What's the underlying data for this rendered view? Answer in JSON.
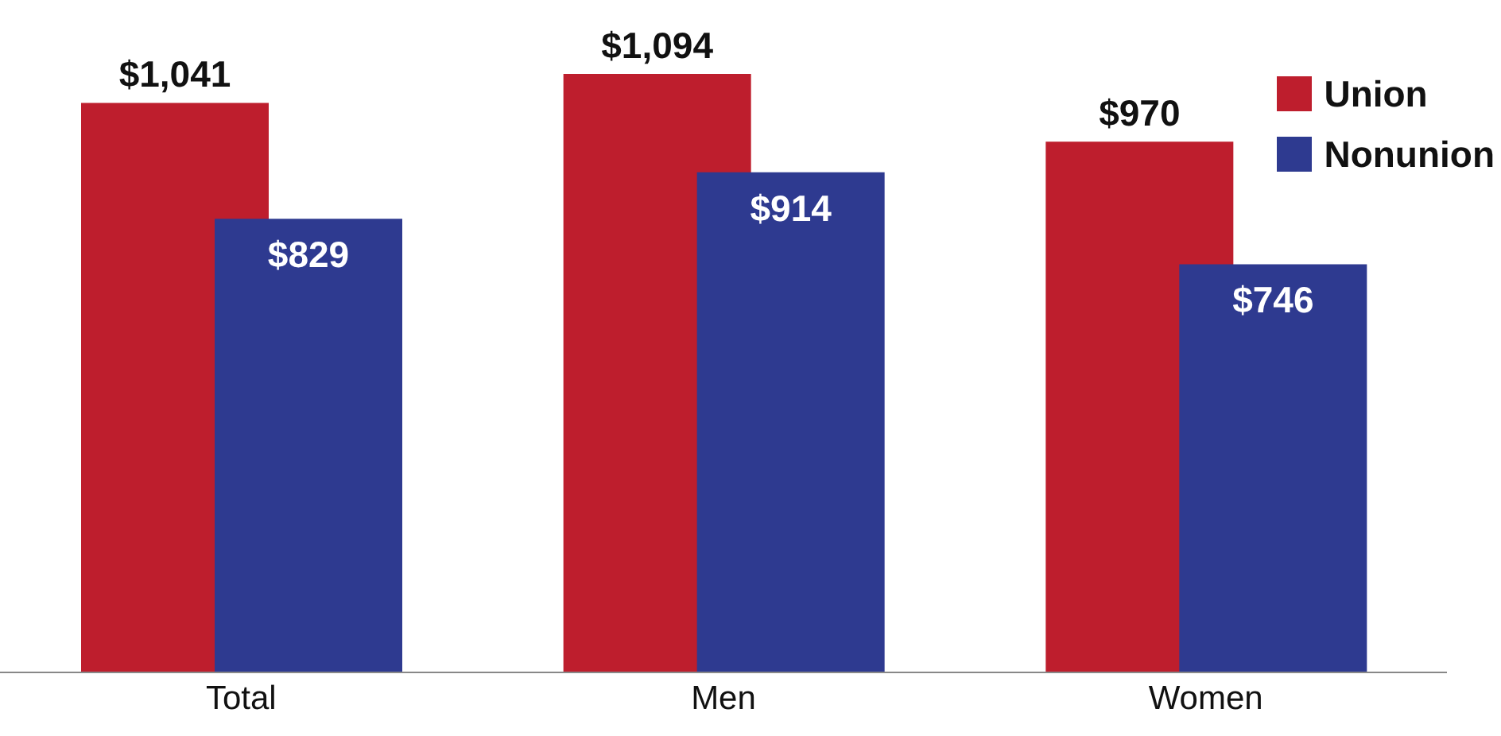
{
  "chart_data": {
    "type": "bar",
    "categories": [
      "Total",
      "Men",
      "Women"
    ],
    "series": [
      {
        "name": "Union",
        "color": "#be1e2d",
        "values": [
          1041,
          1094,
          970
        ],
        "value_labels": [
          "$1,041",
          "$1,094",
          "$970"
        ]
      },
      {
        "name": "Nonunion",
        "color": "#2e3a90",
        "values": [
          829,
          914,
          746
        ],
        "value_labels": [
          "$829",
          "$914",
          "$746"
        ]
      }
    ],
    "tick_labels": "x",
    "legend": "top right"
  }
}
